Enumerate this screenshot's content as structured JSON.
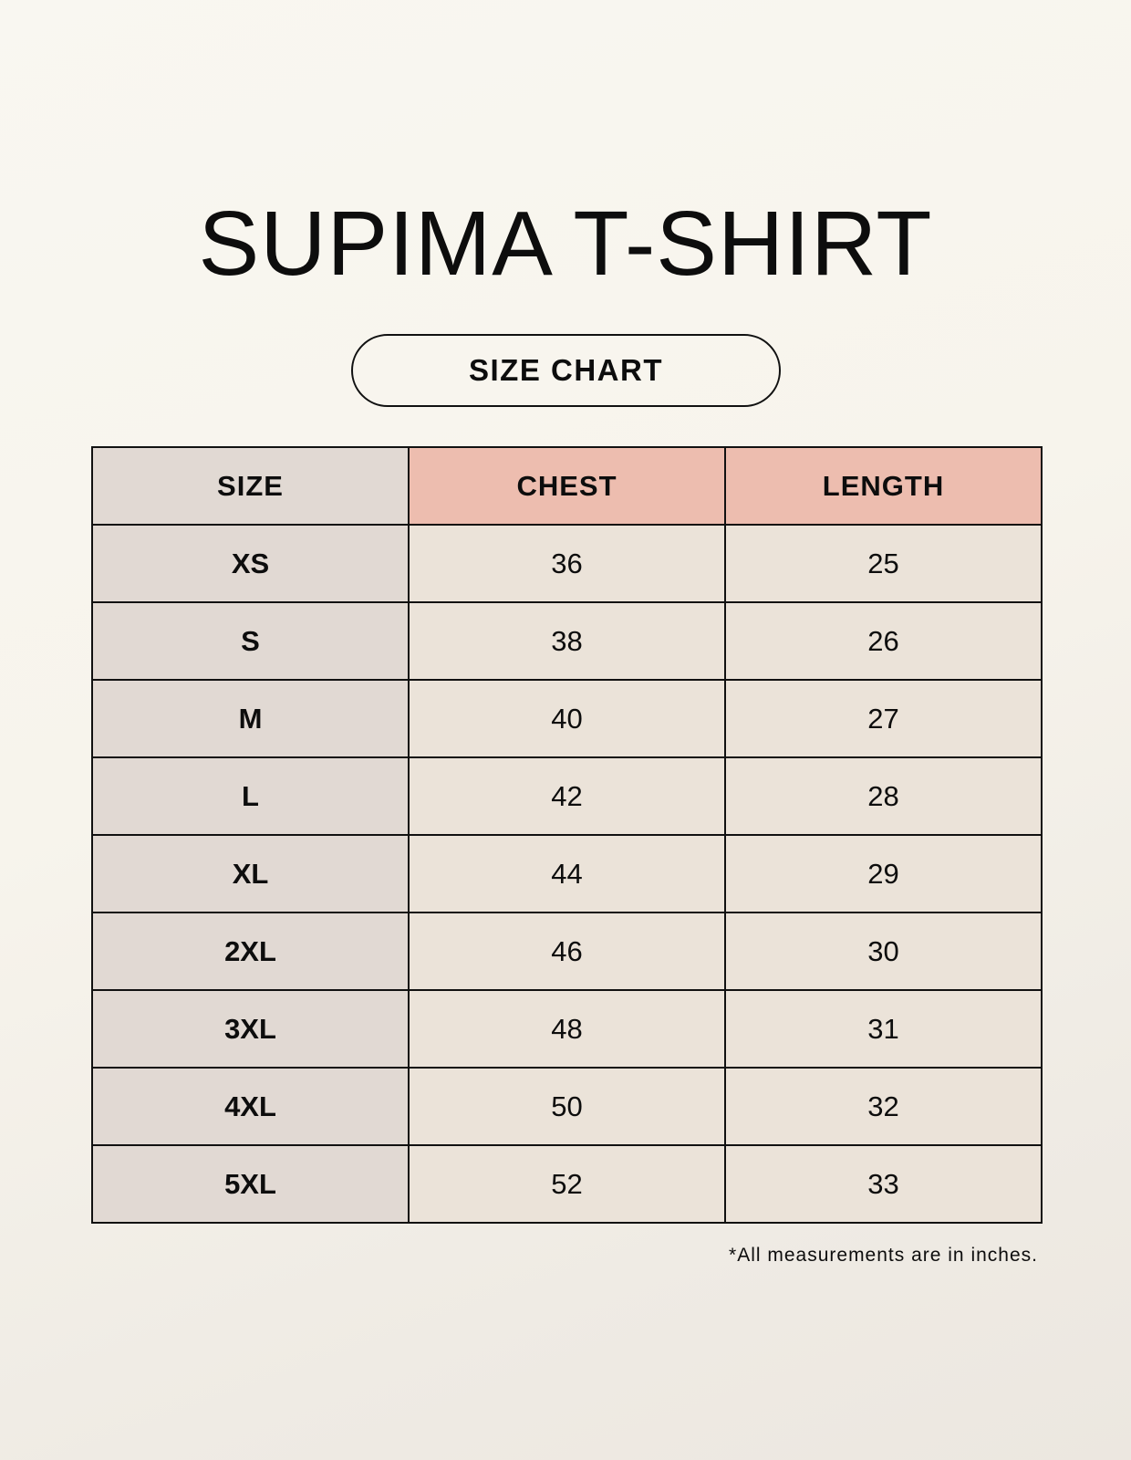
{
  "title": "SUPIMA T-SHIRT",
  "subtitle": "SIZE CHART",
  "table": {
    "headers": [
      "SIZE",
      "CHEST",
      "LENGTH"
    ],
    "rows": [
      [
        "XS",
        "36",
        "25"
      ],
      [
        "S",
        "38",
        "26"
      ],
      [
        "M",
        "40",
        "27"
      ],
      [
        "L",
        "42",
        "28"
      ],
      [
        "XL",
        "44",
        "29"
      ],
      [
        "2XL",
        "46",
        "30"
      ],
      [
        "3XL",
        "48",
        "31"
      ],
      [
        "4XL",
        "50",
        "32"
      ],
      [
        "5XL",
        "52",
        "33"
      ]
    ]
  },
  "footnote": "*All measurements are in inches.",
  "colors": {
    "size_column": "#e1d9d3",
    "header_highlight": "#edbdaf",
    "value_cells": "#ebe3d9",
    "border": "#111111"
  }
}
